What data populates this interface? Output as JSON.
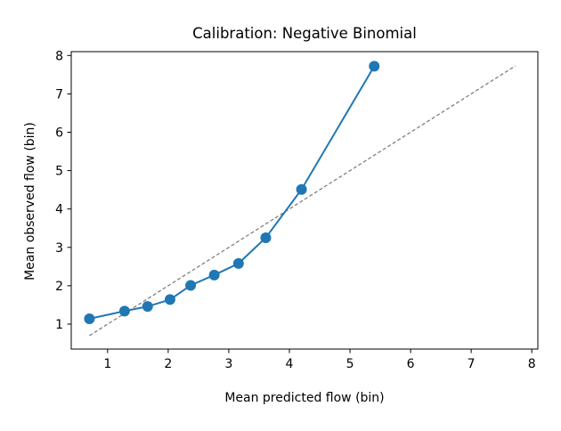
{
  "chart_data": {
    "type": "line",
    "title": "Calibration: Negative Binomial",
    "xlabel": "Mean predicted flow (bin)",
    "ylabel": "Mean observed flow (bin)",
    "xlim": [
      0.4,
      8.1
    ],
    "ylim": [
      0.35,
      8.1
    ],
    "xticks": [
      1,
      2,
      3,
      4,
      5,
      6,
      7,
      8
    ],
    "yticks": [
      1,
      2,
      3,
      4,
      5,
      6,
      7,
      8
    ],
    "grid": false,
    "series": [
      {
        "color": "#1f77b4",
        "marker": "circle",
        "x": [
          0.7,
          1.28,
          1.66,
          2.03,
          2.37,
          2.76,
          3.16,
          3.61,
          4.2,
          5.4
        ],
        "y": [
          1.14,
          1.34,
          1.46,
          1.64,
          2.01,
          2.28,
          2.58,
          3.25,
          4.51,
          7.72
        ]
      }
    ],
    "reference_line": {
      "style": "dashed",
      "color": "#808080",
      "x": [
        0.7,
        7.73
      ],
      "y": [
        0.7,
        7.73
      ]
    }
  }
}
